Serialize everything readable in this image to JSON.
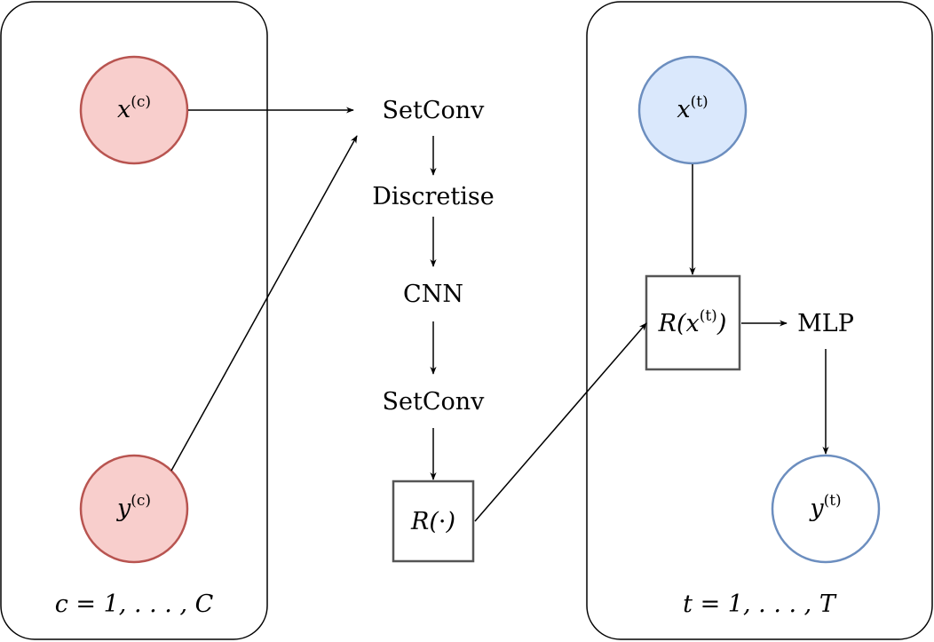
{
  "plates": {
    "context": {
      "label": "c = 1, . . . , C"
    },
    "target": {
      "label": "t = 1, . . . , T"
    }
  },
  "nodes": {
    "x_c": {
      "base": "x",
      "sup": "(c)",
      "fill": "#f8cecc",
      "stroke": "#b85450"
    },
    "y_c": {
      "base": "y",
      "sup": "(c)",
      "fill": "#f8cecc",
      "stroke": "#b85450"
    },
    "x_t": {
      "base": "x",
      "sup": "(t)",
      "fill": "#dae8fc",
      "stroke": "#6c8ebf"
    },
    "y_t": {
      "base": "y",
      "sup": "(t)",
      "fill": "#ffffff",
      "stroke": "#6c8ebf"
    }
  },
  "pipeline": {
    "setconv_top": "SetConv",
    "discretise": "Discretise",
    "cnn": "CNN",
    "setconv_bottom": "SetConv",
    "mlp": "MLP"
  },
  "boxes": {
    "r_dot": {
      "pre": "R(",
      "mid": "·",
      "post": ")"
    },
    "r_xt": {
      "pre": "R(",
      "base": "x",
      "sup": "(t)",
      "post": ")"
    }
  }
}
